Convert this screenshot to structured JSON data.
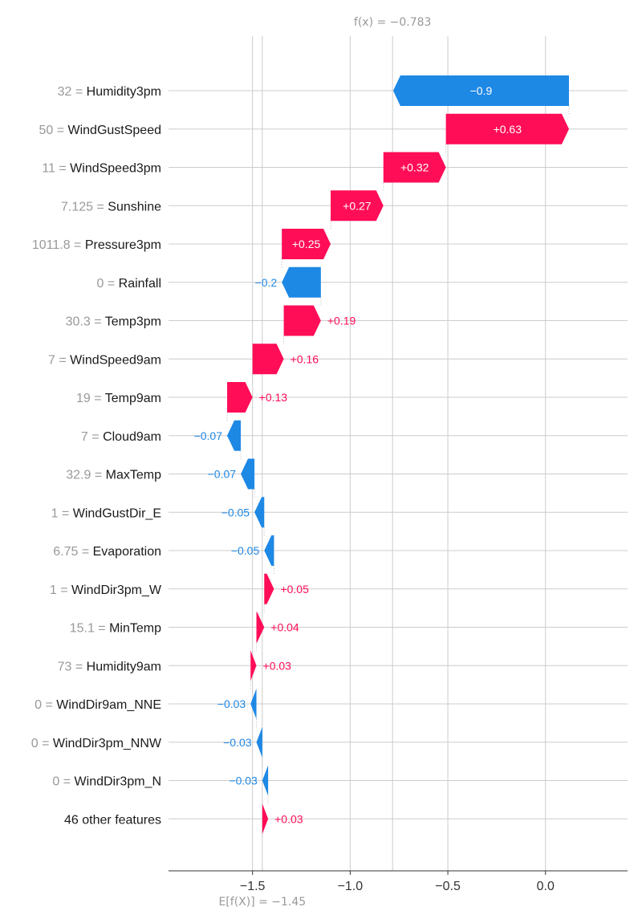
{
  "chart_data": {
    "type": "waterfall",
    "expected_value": -1.45,
    "output_value": -0.783,
    "fx_label": "f(x) = −0.783",
    "efx_label": "E[f(X)] = −1.45",
    "xlim": [
      -1.93,
      0.42
    ],
    "x_ticks": [
      {
        "value": -1.5,
        "label": "−1.5"
      },
      {
        "value": -1.0,
        "label": "−1.0"
      },
      {
        "value": -0.5,
        "label": "−0.5"
      },
      {
        "value": 0.0,
        "label": "0.0"
      }
    ],
    "features": [
      {
        "value": "32",
        "name": "Humidity3pm",
        "contribution": -0.9,
        "label": "−0.9"
      },
      {
        "value": "50",
        "name": "WindGustSpeed",
        "contribution": 0.63,
        "label": "+0.63"
      },
      {
        "value": "11",
        "name": "WindSpeed3pm",
        "contribution": 0.32,
        "label": "+0.32"
      },
      {
        "value": "7.125",
        "name": "Sunshine",
        "contribution": 0.27,
        "label": "+0.27"
      },
      {
        "value": "1011.8",
        "name": "Pressure3pm",
        "contribution": 0.25,
        "label": "+0.25"
      },
      {
        "value": "0",
        "name": "Rainfall",
        "contribution": -0.2,
        "label": "−0.2"
      },
      {
        "value": "30.3",
        "name": "Temp3pm",
        "contribution": 0.19,
        "label": "+0.19"
      },
      {
        "value": "7",
        "name": "WindSpeed9am",
        "contribution": 0.16,
        "label": "+0.16"
      },
      {
        "value": "19",
        "name": "Temp9am",
        "contribution": 0.13,
        "label": "+0.13"
      },
      {
        "value": "7",
        "name": "Cloud9am",
        "contribution": -0.07,
        "label": "−0.07"
      },
      {
        "value": "32.9",
        "name": "MaxTemp",
        "contribution": -0.07,
        "label": "−0.07"
      },
      {
        "value": "1",
        "name": "WindGustDir_E",
        "contribution": -0.05,
        "label": "−0.05"
      },
      {
        "value": "6.75",
        "name": "Evaporation",
        "contribution": -0.05,
        "label": "−0.05"
      },
      {
        "value": "1",
        "name": "WindDir3pm_W",
        "contribution": 0.05,
        "label": "+0.05"
      },
      {
        "value": "15.1",
        "name": "MinTemp",
        "contribution": 0.04,
        "label": "+0.04"
      },
      {
        "value": "73",
        "name": "Humidity9am",
        "contribution": 0.03,
        "label": "+0.03"
      },
      {
        "value": "0",
        "name": "WindDir9am_NNE",
        "contribution": -0.03,
        "label": "−0.03"
      },
      {
        "value": "0",
        "name": "WindDir3pm_NNW",
        "contribution": -0.03,
        "label": "−0.03"
      },
      {
        "value": "0",
        "name": "WindDir3pm_N",
        "contribution": -0.03,
        "label": "−0.03"
      },
      {
        "value": "",
        "name": "46 other features",
        "contribution": 0.03,
        "label": "+0.03"
      }
    ],
    "colors": {
      "positive": "#ff0d57",
      "negative": "#1e88e5",
      "grid": "#cccccc",
      "value_text": "#999999"
    }
  }
}
